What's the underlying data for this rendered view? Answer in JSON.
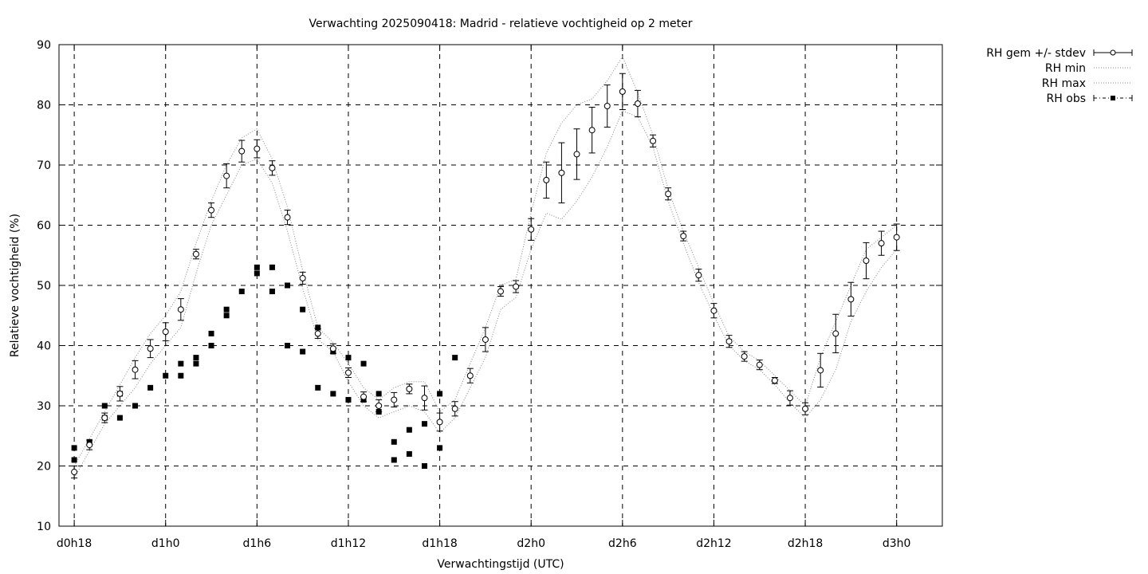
{
  "chart_data": {
    "type": "scatter",
    "title": "Verwachting 2025090418: Madrid - relatieve vochtigheid op 2 meter",
    "xlabel": "Verwachtingstijd (UTC)",
    "ylabel": "Relatieve vochtigheid (%)",
    "ylim": [
      10,
      90
    ],
    "yticks": [
      10,
      20,
      30,
      40,
      50,
      60,
      70,
      80,
      90
    ],
    "xlim": [
      -1,
      57
    ],
    "xticks": [
      {
        "x": 0,
        "label": "d0h18"
      },
      {
        "x": 6,
        "label": "d1h0"
      },
      {
        "x": 12,
        "label": "d1h6"
      },
      {
        "x": 18,
        "label": "d1h12"
      },
      {
        "x": 24,
        "label": "d1h18"
      },
      {
        "x": 30,
        "label": "d2h0"
      },
      {
        "x": 36,
        "label": "d2h6"
      },
      {
        "x": 42,
        "label": "d2h12"
      },
      {
        "x": 48,
        "label": "d2h18"
      },
      {
        "x": 54,
        "label": "d3h0"
      }
    ],
    "grid": true,
    "legend_position": "top-right-outside",
    "legend": [
      "RH gem +/- stdev",
      "RH min",
      "RH max",
      "RH obs"
    ],
    "series": [
      {
        "name": "RH gem +/- stdev",
        "style": "open-circle-errorbar",
        "x": [
          0,
          1,
          2,
          3,
          4,
          5,
          6,
          7,
          8,
          9,
          10,
          11,
          12,
          13,
          14,
          15,
          16,
          17,
          18,
          19,
          20,
          21,
          22,
          23,
          24,
          25,
          26,
          27,
          28,
          29,
          30,
          31,
          32,
          33,
          34,
          35,
          36,
          37,
          38,
          39,
          40,
          41,
          42,
          43,
          44,
          45,
          46,
          47,
          48,
          49,
          50,
          51,
          52,
          53,
          54
        ],
        "mean": [
          19,
          23.5,
          28,
          32,
          36,
          39.5,
          42.3,
          46,
          55.2,
          62.5,
          68.2,
          72.3,
          72.7,
          69.5,
          61.3,
          51.2,
          42,
          39.5,
          35.5,
          31.5,
          30,
          31,
          32.8,
          31.3,
          27.3,
          29.5,
          35,
          41,
          49,
          49.8,
          59.3,
          67.5,
          68.7,
          71.8,
          75.8,
          79.8,
          82.2,
          80.2,
          74,
          65.2,
          58.2,
          51.7,
          45.8,
          40.7,
          38.2,
          36.8,
          34.2,
          31.3,
          29.5,
          35.9,
          42,
          47.7,
          54.1,
          57,
          58
        ],
        "stdev": [
          1,
          0.8,
          0.8,
          1.2,
          1.5,
          1.5,
          1.5,
          1.8,
          0.8,
          1.2,
          2,
          1.8,
          1.5,
          1.2,
          1.2,
          1,
          0.8,
          0.8,
          0.8,
          0.8,
          1,
          1.2,
          0.8,
          2,
          1.5,
          1.2,
          1.2,
          2,
          0.8,
          1,
          1.8,
          3,
          5,
          4.2,
          3.8,
          3.5,
          3,
          2.2,
          1,
          1,
          0.8,
          1,
          1.2,
          1,
          0.8,
          0.8,
          0.5,
          1.2,
          1,
          2.8,
          3.2,
          2.8,
          3,
          2,
          2.2
        ]
      },
      {
        "name": "RH min",
        "style": "dotted-line",
        "x": [
          0,
          1,
          2,
          3,
          4,
          5,
          6,
          7,
          8,
          9,
          10,
          11,
          12,
          13,
          14,
          15,
          16,
          17,
          18,
          19,
          20,
          21,
          22,
          23,
          24,
          25,
          26,
          27,
          28,
          29,
          30,
          31,
          32,
          33,
          34,
          35,
          36,
          37,
          38,
          39,
          40,
          41,
          42,
          43,
          44,
          45,
          46,
          47,
          48,
          49,
          50,
          51,
          52,
          53,
          54
        ],
        "values": [
          18,
          22.5,
          27,
          30,
          33,
          37,
          40,
          43,
          52,
          60,
          65,
          70,
          71,
          67,
          59,
          49.5,
          41,
          39,
          34,
          30,
          28,
          29,
          30,
          29,
          25.5,
          28,
          33,
          38,
          46,
          48,
          56,
          62,
          61,
          64,
          68,
          73,
          79,
          78,
          73,
          64,
          57,
          50.5,
          45,
          40,
          37.5,
          36,
          33.5,
          30.5,
          28,
          31,
          36,
          44,
          49,
          53,
          56
        ]
      },
      {
        "name": "RH max",
        "style": "dotted-line",
        "x": [
          0,
          1,
          2,
          3,
          4,
          5,
          6,
          7,
          8,
          9,
          10,
          11,
          12,
          13,
          14,
          15,
          16,
          17,
          18,
          19,
          20,
          21,
          22,
          23,
          24,
          25,
          26,
          27,
          28,
          29,
          30,
          31,
          32,
          33,
          34,
          35,
          36,
          37,
          38,
          39,
          40,
          41,
          42,
          43,
          44,
          45,
          46,
          47,
          48,
          49,
          50,
          51,
          52,
          53,
          54
        ],
        "values": [
          20,
          24.5,
          29,
          33.5,
          38,
          42,
          45,
          49,
          57,
          64,
          70,
          74.5,
          76,
          71,
          63,
          52.5,
          43,
          40.5,
          37,
          33,
          31,
          33,
          34,
          34,
          29,
          31,
          37,
          43,
          50,
          51,
          62,
          72,
          77,
          80,
          81,
          84,
          88,
          82,
          75,
          66,
          59,
          53,
          47,
          41.5,
          39,
          37.5,
          35,
          32.5,
          30,
          38,
          44,
          50,
          56,
          58,
          60
        ]
      },
      {
        "name": "RH obs",
        "style": "filled-square",
        "x": [
          0,
          0,
          1,
          2,
          2,
          3,
          3,
          4,
          5,
          6,
          7,
          7,
          8,
          8,
          9,
          9,
          10,
          10,
          11,
          12,
          12,
          13,
          13,
          14,
          14,
          15,
          15,
          16,
          16,
          17,
          17,
          18,
          18,
          19,
          19,
          20,
          20,
          21,
          21,
          22,
          22,
          23,
          23,
          24,
          24,
          25
        ],
        "values": [
          21,
          23,
          24,
          28,
          30,
          28,
          32,
          30,
          33,
          35,
          35,
          37,
          37,
          38,
          40,
          42,
          45,
          46,
          49,
          52,
          53,
          49,
          53,
          40,
          50,
          39,
          46,
          33,
          43,
          32,
          39,
          31,
          38,
          31,
          37,
          29,
          32,
          21,
          24,
          22,
          26,
          20,
          27,
          23,
          32,
          38
        ]
      }
    ]
  }
}
